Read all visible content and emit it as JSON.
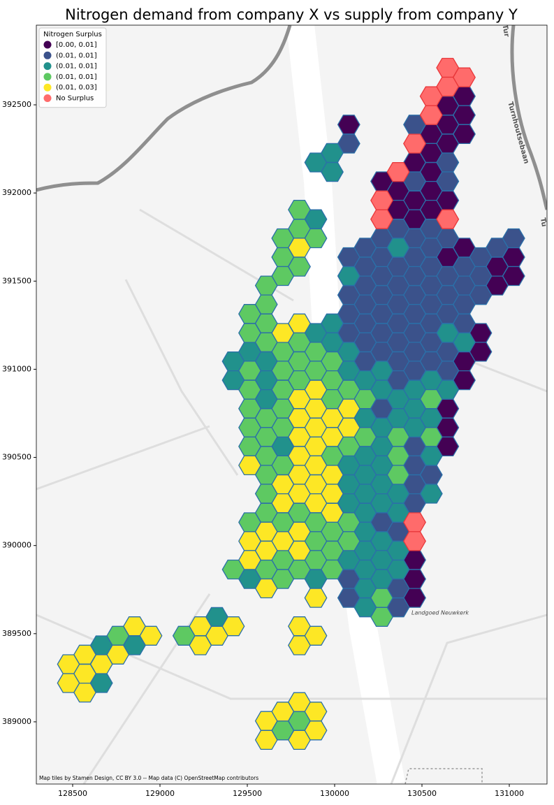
{
  "chart_data": {
    "type": "hexbin",
    "title": "Nitrogen demand from company X vs supply from company Y",
    "xlim": [
      128292,
      131216
    ],
    "ylim": [
      388647,
      392952
    ],
    "xticks": [
      128500,
      129000,
      129500,
      130000,
      130500,
      131000
    ],
    "yticks": [
      389000,
      389500,
      390000,
      390500,
      391000,
      391500,
      392000,
      392500
    ],
    "legend": "upper left",
    "legend_title": "Nitrogen Surplus",
    "annotations": [
      "Turnhoutsebaan",
      "Landgoed Neuwkerk",
      "Tur",
      "Tu",
      "Map tiles by Stamen Design, CC BY 3.0 -- Map data (C) OpenStreetMap contributors"
    ],
    "series": [
      {
        "name": "[0.00, 0.01]",
        "color": "#440154",
        "edgecolor": "#2b6fa8",
        "x": [
          130081,
          130270,
          130364,
          130364,
          130458,
          130458,
          130458,
          130458,
          130458,
          130458,
          130553,
          130553,
          130553,
          130553,
          130553,
          130647,
          130647,
          130647,
          130647,
          130647,
          130647,
          130647,
          130647,
          130742,
          130742,
          130742,
          130742,
          130742,
          130742,
          130836,
          130836,
          130930,
          130930,
          131025,
          131025
        ],
        "y": [
          392388,
          392066,
          392012,
          391905,
          392173,
          391958,
          391851,
          389918,
          389810,
          389703,
          392334,
          392227,
          392119,
          392012,
          391905,
          392495,
          392388,
          392280,
          391958,
          391636,
          390777,
          390669,
          390562,
          392549,
          392442,
          392334,
          391690,
          391045,
          390938,
          391206,
          391099,
          391582,
          391475,
          391636,
          391529
        ]
      },
      {
        "name": "(0.01, 0.01]",
        "color": "#3b528b",
        "edgecolor": "#2b6fa8",
        "x": [
          130081,
          130081,
          130081,
          130081,
          130081,
          130081,
          130081,
          130175,
          130175,
          130175,
          130175,
          130175,
          130175,
          130175,
          130270,
          130270,
          130270,
          130270,
          130270,
          130270,
          130270,
          130270,
          130270,
          130364,
          130364,
          130364,
          130364,
          130364,
          130364,
          130364,
          130364,
          130364,
          130364,
          130364,
          130458,
          130458,
          130458,
          130458,
          130458,
          130458,
          130458,
          130458,
          130458,
          130458,
          130458,
          130458,
          130458,
          130458,
          130553,
          130553,
          130553,
          130553,
          130553,
          130553,
          130553,
          130553,
          130553,
          130647,
          130647,
          130647,
          130647,
          130647,
          130647,
          130647,
          130647,
          130742,
          130742,
          130742,
          130742,
          130836,
          130836,
          130836,
          130930,
          131025
        ],
        "y": [
          392280,
          391636,
          391421,
          391314,
          391206,
          389810,
          389703,
          391690,
          391582,
          391475,
          391368,
          391260,
          391153,
          391045,
          391743,
          391636,
          391529,
          391421,
          391314,
          391206,
          391099,
          390777,
          390132,
          391797,
          391582,
          391475,
          391368,
          391260,
          391153,
          391045,
          390938,
          390079,
          389757,
          389649,
          392388,
          392066,
          391743,
          391636,
          391529,
          391421,
          391314,
          391206,
          391099,
          390992,
          390562,
          390455,
          390347,
          390240,
          391797,
          391690,
          391582,
          391475,
          391368,
          391260,
          391153,
          391045,
          390401,
          392173,
          392066,
          391743,
          391529,
          391421,
          391314,
          391099,
          390992,
          391582,
          391475,
          391368,
          391260,
          391636,
          391529,
          391421,
          391690,
          391743
        ]
      },
      {
        "name": "(0.01, 0.01]",
        "color": "#21918c",
        "edgecolor": "#2b6fa8",
        "x": [
          128665,
          128665,
          128854,
          129326,
          129420,
          129420,
          129514,
          129514,
          129609,
          129609,
          129609,
          129703,
          129892,
          129892,
          129892,
          129892,
          129986,
          129986,
          129986,
          129986,
          130081,
          130081,
          130081,
          130081,
          130081,
          130081,
          130081,
          130175,
          130175,
          130175,
          130175,
          130175,
          130175,
          130175,
          130175,
          130175,
          130175,
          130175,
          130270,
          130270,
          130270,
          130270,
          130270,
          130270,
          130270,
          130270,
          130270,
          130270,
          130364,
          130364,
          130364,
          130364,
          130364,
          130364,
          130364,
          130458,
          130458,
          130458,
          130553,
          130553,
          130553,
          130553,
          130647,
          130647,
          130742
        ],
        "y": [
          389434,
          389220,
          389434,
          389595,
          391045,
          390938,
          391099,
          389810,
          391045,
          390938,
          390831,
          390562,
          392173,
          391851,
          391206,
          389810,
          392227,
          392119,
          391260,
          391153,
          391529,
          391099,
          390992,
          390455,
          390347,
          390240,
          389918,
          390938,
          390723,
          390508,
          390401,
          390294,
          390186,
          390079,
          389971,
          389864,
          389757,
          389649,
          390992,
          390884,
          390669,
          390562,
          390455,
          390347,
          390240,
          390025,
          389918,
          389810,
          391690,
          390831,
          390723,
          390294,
          390186,
          389971,
          389864,
          390884,
          390777,
          390669,
          390938,
          390723,
          390508,
          390294,
          391206,
          390884,
          391153
        ]
      },
      {
        "name": "(0.01, 0.01]",
        "color": "#5ec962",
        "edgecolor": "#2b6fa8",
        "x": [
          128759,
          129137,
          129420,
          129514,
          129514,
          129514,
          129514,
          129514,
          129514,
          129514,
          129514,
          129609,
          129609,
          129609,
          129609,
          129609,
          129609,
          129609,
          129609,
          129609,
          129609,
          129609,
          129703,
          129703,
          129703,
          129703,
          129703,
          129703,
          129703,
          129703,
          129703,
          129703,
          129703,
          129703,
          129703,
          129798,
          129798,
          129798,
          129798,
          129798,
          129798,
          129798,
          129798,
          129798,
          129892,
          129892,
          129892,
          129892,
          129892,
          129892,
          129986,
          129986,
          129986,
          129986,
          129986,
          129986,
          129986,
          130081,
          130081,
          130081,
          130081,
          130175,
          130175,
          130270,
          130270,
          130364,
          130364,
          130364,
          130553,
          130553
        ],
        "y": [
          389488,
          389488,
          389864,
          391314,
          391206,
          390992,
          390884,
          390777,
          390669,
          390562,
          390132,
          391475,
          391368,
          391260,
          391153,
          390723,
          390616,
          390508,
          390401,
          390294,
          390186,
          389864,
          391743,
          391636,
          391529,
          391099,
          390992,
          390884,
          390777,
          390669,
          390455,
          390132,
          389918,
          389810,
          388951,
          391905,
          391797,
          391582,
          391153,
          391045,
          390938,
          390186,
          389864,
          389005,
          391743,
          391099,
          390992,
          390132,
          390025,
          389918,
          391045,
          390938,
          390831,
          390508,
          390079,
          389971,
          389864,
          390884,
          390562,
          390132,
          390025,
          390831,
          390616,
          389703,
          389595,
          390616,
          390508,
          390401,
          390831,
          390616
        ]
      },
      {
        "name": "(0.01, 0.03]",
        "color": "#fde725",
        "edgecolor": "#2b6fa8",
        "x": [
          128476,
          128476,
          128570,
          128570,
          128570,
          128665,
          128759,
          128854,
          128948,
          129231,
          129231,
          129326,
          129420,
          129514,
          129514,
          129514,
          129609,
          129609,
          129609,
          129609,
          129609,
          129703,
          129703,
          129703,
          129703,
          129703,
          129798,
          129798,
          129798,
          129798,
          129798,
          129798,
          129798,
          129798,
          129798,
          129798,
          129798,
          129798,
          129798,
          129798,
          129892,
          129892,
          129892,
          129892,
          129892,
          129892,
          129892,
          129892,
          129892,
          129892,
          129892,
          129986,
          129986,
          129986,
          129986,
          129986,
          130081,
          130081
        ],
        "y": [
          389327,
          389220,
          389381,
          389273,
          389166,
          389327,
          389381,
          389542,
          389488,
          389542,
          389434,
          389488,
          389542,
          390455,
          390025,
          389918,
          390079,
          389971,
          389757,
          389005,
          388897,
          391206,
          390347,
          390240,
          390025,
          389058,
          391690,
          391260,
          390831,
          390723,
          390616,
          390508,
          390401,
          390294,
          390079,
          389971,
          389542,
          389434,
          389112,
          388897,
          390884,
          390777,
          390669,
          390562,
          390455,
          390347,
          390240,
          389703,
          389488,
          389058,
          388951,
          390723,
          390616,
          390401,
          390294,
          390186,
          390777,
          390669
        ]
      },
      {
        "name": "No Surplus",
        "color": "#ff6b6b",
        "edgecolor": "#e8373a",
        "x": [
          130270,
          130270,
          130364,
          130458,
          130458,
          130458,
          130553,
          130553,
          130647,
          130647,
          130647,
          130742
        ],
        "y": [
          391958,
          391851,
          392119,
          392280,
          390132,
          390025,
          392549,
          392442,
          392710,
          392603,
          391851,
          392656
        ]
      }
    ]
  }
}
